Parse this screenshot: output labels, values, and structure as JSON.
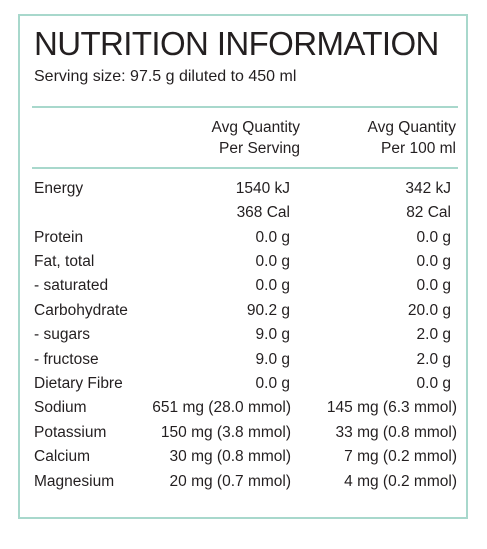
{
  "title": "NUTRITION INFORMATION",
  "serving_size": "Serving size: 97.5 g diluted to 450 ml",
  "headers": {
    "col1_line1": "Avg Quantity",
    "col1_line2": "Per Serving",
    "col2_line1": "Avg Quantity",
    "col2_line2": "Per 100 ml"
  },
  "rows": [
    {
      "label": "Energy",
      "per_serving": "1540 kJ",
      "per_100ml": "342 kJ"
    },
    {
      "label": "",
      "per_serving": "368 Cal",
      "per_100ml": "82 Cal"
    },
    {
      "label": "Protein",
      "per_serving": "0.0 g",
      "per_100ml": "0.0 g"
    },
    {
      "label": "Fat, total",
      "per_serving": "0.0 g",
      "per_100ml": "0.0 g"
    },
    {
      "label": "- saturated",
      "per_serving": "0.0 g",
      "per_100ml": "0.0 g"
    },
    {
      "label": "Carbohydrate",
      "per_serving": "90.2 g",
      "per_100ml": "20.0 g"
    },
    {
      "label": "- sugars",
      "per_serving": "9.0 g",
      "per_100ml": "2.0 g"
    },
    {
      "label": "- fructose",
      "per_serving": "9.0 g",
      "per_100ml": "2.0 g"
    },
    {
      "label": "Dietary Fibre",
      "per_serving": "0.0 g",
      "per_100ml": "0.0 g"
    }
  ],
  "minerals": [
    {
      "label": "Sodium",
      "per_serving": "651 mg (28.0 mmol)",
      "per_100ml": "145 mg (6.3 mmol)"
    },
    {
      "label": "Potassium",
      "per_serving": "150 mg (3.8 mmol)",
      "per_100ml": "33 mg (0.8 mmol)"
    },
    {
      "label": "Calcium",
      "per_serving": "30 mg (0.8 mmol)",
      "per_100ml": "7 mg (0.2 mmol)"
    },
    {
      "label": "Magnesium",
      "per_serving": "20 mg (0.7 mmol)",
      "per_100ml": "4 mg (0.2 mmol)"
    }
  ],
  "colors": {
    "border": "#a8d8cc",
    "text": "#231f20"
  }
}
